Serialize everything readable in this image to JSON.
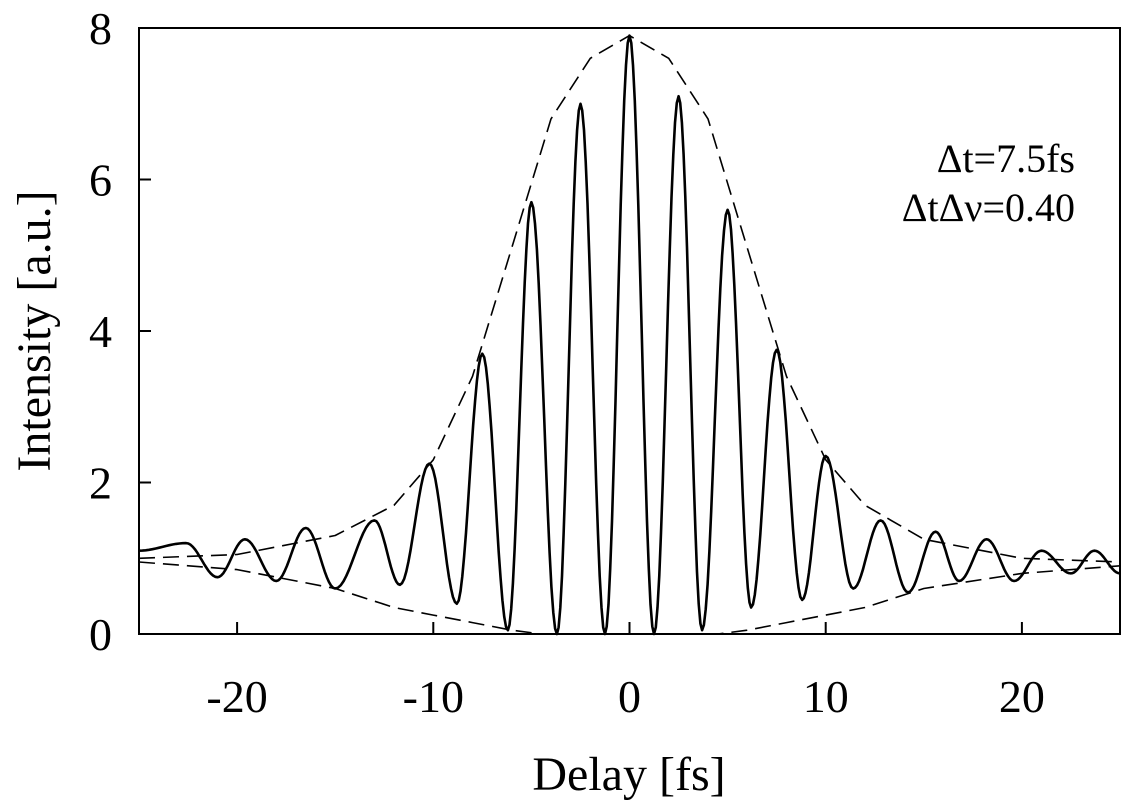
{
  "chart_data": {
    "type": "line",
    "xlabel": "Delay [fs]",
    "ylabel": "Intensity [a.u.]",
    "xlim": [
      -25,
      25
    ],
    "ylim": [
      0,
      8
    ],
    "x_ticks": [
      -20,
      -10,
      0,
      10,
      20
    ],
    "x_tick_labels": [
      "-20",
      "-10",
      "0",
      "10",
      "20"
    ],
    "y_ticks": [
      0,
      2,
      4,
      6,
      8
    ],
    "y_tick_labels": [
      "0",
      "2",
      "4",
      "6",
      "8"
    ],
    "grid": false,
    "legend": "none",
    "annotations": [
      "Δt=7.5fs",
      "ΔtΔν=0.40"
    ],
    "series": [
      {
        "style": "solid",
        "x": [
          -25,
          -22.6,
          -21.0,
          -19.6,
          -18.0,
          -16.5,
          -15.0,
          -13.0,
          -11.7,
          -10.2,
          -8.8,
          -7.5,
          -6.2,
          -5.0,
          -3.7,
          -2.5,
          -1.25,
          0,
          1.25,
          2.5,
          3.7,
          5.0,
          6.2,
          7.5,
          8.8,
          10.0,
          11.4,
          12.8,
          14.2,
          15.6,
          16.8,
          18.2,
          19.6,
          21.0,
          22.5,
          23.7,
          25
        ],
        "y": [
          1.1,
          1.2,
          0.75,
          1.25,
          0.7,
          1.4,
          0.6,
          1.5,
          0.65,
          2.25,
          0.4,
          3.7,
          0.05,
          5.7,
          0.0,
          7.0,
          0.0,
          7.9,
          0.0,
          7.1,
          0.05,
          5.6,
          0.35,
          3.75,
          0.45,
          2.35,
          0.6,
          1.5,
          0.55,
          1.35,
          0.7,
          1.25,
          0.7,
          1.1,
          0.8,
          1.1,
          0.8
        ]
      },
      {
        "style": "dashed-upper-envelope",
        "x": [
          -25,
          -20,
          -15,
          -12,
          -10,
          -8,
          -6,
          -4,
          -2,
          0,
          2,
          4,
          6,
          8,
          10,
          12,
          15,
          20,
          25
        ],
        "y": [
          1.0,
          1.05,
          1.3,
          1.7,
          2.3,
          3.4,
          5.1,
          6.8,
          7.6,
          7.9,
          7.6,
          6.8,
          5.1,
          3.4,
          2.3,
          1.7,
          1.25,
          1.0,
          0.95
        ]
      },
      {
        "style": "dashed-lower-envelope",
        "x": [
          -25,
          -20,
          -15,
          -12,
          -10,
          -8,
          -6,
          -4.5,
          -3.5,
          0,
          3.5,
          4.5,
          6,
          8,
          10,
          12,
          15,
          20,
          25
        ],
        "y": [
          0.95,
          0.85,
          0.6,
          0.35,
          0.25,
          0.15,
          0.05,
          0.0,
          0.0,
          0.0,
          0.0,
          0.0,
          0.05,
          0.15,
          0.25,
          0.35,
          0.6,
          0.8,
          0.9
        ]
      }
    ]
  }
}
